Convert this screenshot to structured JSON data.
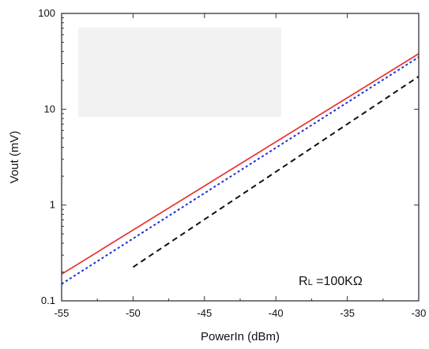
{
  "chart_data": {
    "type": "line",
    "xlabel": "PowerIn (dBm)",
    "ylabel": "Vout (mV)",
    "xlim": [
      -55,
      -30
    ],
    "ylim": [
      0.1,
      100
    ],
    "yscale": "log",
    "grid": false,
    "x_ticks": [
      -55,
      -50,
      -45,
      -40,
      -35,
      -30
    ],
    "x_tick_labels": [
      "-55",
      "-50",
      "-45",
      "-40",
      "-35",
      "-30"
    ],
    "y_ticks": [
      0.1,
      1,
      10,
      100
    ],
    "y_tick_labels": [
      "0.1",
      "1",
      "10",
      "100"
    ],
    "legend": {
      "placement": "top-left",
      "entries": []
    },
    "annotation": {
      "main": "R",
      "subscript": "L",
      "rest": " =100KΩ"
    },
    "series": [
      {
        "color": "#e8312f",
        "style": "solid",
        "x": [
          -55,
          -30
        ],
        "y": [
          0.19,
          38
        ]
      },
      {
        "color": "#1f2fd6",
        "style": "dotted",
        "x": [
          -55,
          -30
        ],
        "y": [
          0.15,
          35
        ]
      },
      {
        "color": "#111111",
        "style": "dashed",
        "x": [
          -50,
          -30
        ],
        "y": [
          0.225,
          22
        ]
      }
    ]
  }
}
